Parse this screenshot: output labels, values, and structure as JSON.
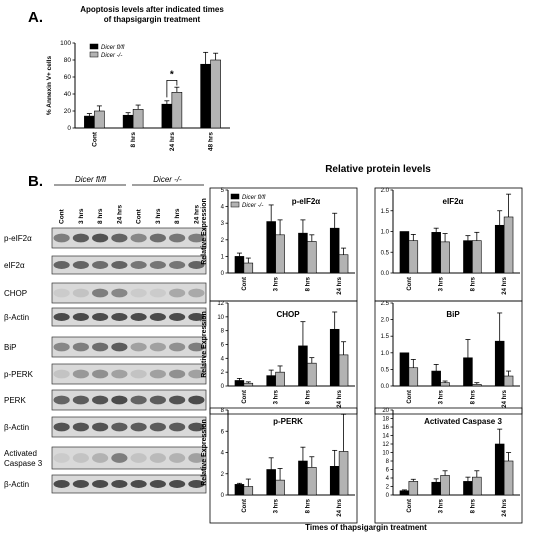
{
  "panel_a_label": "A.",
  "panel_b_label": "B.",
  "blot": {
    "groups": [
      "Dicer fl/fl",
      "Dicer -/-"
    ],
    "lanes": [
      "Cont",
      "3 hrs",
      "8 hrs",
      "24 hrs",
      "Cont",
      "3 hrs",
      "8 hrs",
      "24 hrs"
    ],
    "rows": [
      "p-eIF2α",
      "eIF2α",
      "CHOP",
      "β-Actin",
      "BiP",
      "p-PERK",
      "PERK",
      "β-Actin",
      "Activated Caspase 3",
      "β-Actin"
    ]
  },
  "relative_title": "Relative protein levels",
  "shared_xlabel": "Times of thapsigargin treatment",
  "colors": {
    "control": "#000000",
    "knockout": "#b3b3b3"
  },
  "chart_data": [
    {
      "id": "annexin",
      "type": "bar",
      "title": "Apoptosis levels after indicated times of thapsigargin treatment",
      "ylabel": "% Annexin V+ cells",
      "xlabel": "",
      "categories": [
        "Cont",
        "8 hrs",
        "24 hrs",
        "48 hrs"
      ],
      "ylim": [
        0,
        100
      ],
      "yticks": [
        0,
        20,
        40,
        60,
        80,
        100
      ],
      "legend": [
        "Dicer fl/fl",
        "Dicer -/-"
      ],
      "significance": {
        "category": "24 hrs",
        "label": "*"
      },
      "series": [
        {
          "name": "Dicer fl/fl",
          "values": [
            14,
            15,
            28,
            75
          ],
          "errors": [
            3,
            3,
            4,
            14
          ]
        },
        {
          "name": "Dicer -/-",
          "values": [
            20,
            22,
            42,
            80
          ],
          "errors": [
            6,
            5,
            6,
            8
          ]
        }
      ]
    },
    {
      "id": "peif2a",
      "type": "bar",
      "title": "p-eIF2α",
      "ylabel": "Relative Expression",
      "categories": [
        "Cont",
        "3 hrs",
        "8 hrs",
        "24 hrs"
      ],
      "ylim": [
        0,
        5
      ],
      "yticks": [
        0,
        1,
        2,
        3,
        4,
        5
      ],
      "legend": [
        "Dicer fl/fl",
        "Dicer -/-"
      ],
      "series": [
        {
          "name": "Dicer fl/fl",
          "values": [
            1.0,
            3.1,
            2.4,
            2.7
          ],
          "errors": [
            0.2,
            1.0,
            0.8,
            0.9
          ]
        },
        {
          "name": "Dicer -/-",
          "values": [
            0.6,
            2.3,
            1.9,
            1.1
          ],
          "errors": [
            0.3,
            0.9,
            0.4,
            0.4
          ]
        }
      ]
    },
    {
      "id": "eif2a",
      "type": "bar",
      "title": "eIF2α",
      "ylabel": "",
      "categories": [
        "Cont",
        "3 hrs",
        "8 hrs",
        "24 hrs"
      ],
      "ylim": [
        0,
        2
      ],
      "yticks": [
        0.0,
        0.5,
        1.0,
        1.5,
        2.0
      ],
      "series": [
        {
          "name": "Dicer fl/fl",
          "values": [
            1.0,
            0.98,
            0.78,
            1.15
          ],
          "errors": [
            0.0,
            0.1,
            0.12,
            0.35
          ]
        },
        {
          "name": "Dicer -/-",
          "values": [
            0.78,
            0.75,
            0.78,
            1.35
          ],
          "errors": [
            0.15,
            0.2,
            0.2,
            0.55
          ]
        }
      ]
    },
    {
      "id": "chop",
      "type": "bar",
      "title": "CHOP",
      "ylabel": "Relative Expression",
      "categories": [
        "Cont",
        "3 hrs",
        "8 hrs",
        "24 hrs"
      ],
      "ylim": [
        0,
        12
      ],
      "yticks": [
        0,
        2,
        4,
        6,
        8,
        10,
        12
      ],
      "series": [
        {
          "name": "Dicer fl/fl",
          "values": [
            0.8,
            1.5,
            5.8,
            8.2
          ],
          "errors": [
            0.3,
            0.8,
            3.5,
            2.5
          ]
        },
        {
          "name": "Dicer -/-",
          "values": [
            0.4,
            2.0,
            3.3,
            4.5
          ],
          "errors": [
            0.2,
            0.9,
            0.8,
            1.9
          ]
        }
      ]
    },
    {
      "id": "bip",
      "type": "bar",
      "title": "BiP",
      "ylabel": "",
      "categories": [
        "Cont",
        "3 hrs",
        "8 hrs",
        "24 hrs"
      ],
      "ylim": [
        0,
        2.5
      ],
      "yticks": [
        0.0,
        0.5,
        1.0,
        1.5,
        2.0,
        2.5
      ],
      "series": [
        {
          "name": "Dicer fl/fl",
          "values": [
            1.0,
            0.45,
            0.85,
            1.35
          ],
          "errors": [
            0.0,
            0.2,
            0.55,
            0.85
          ]
        },
        {
          "name": "Dicer -/-",
          "values": [
            0.55,
            0.1,
            0.05,
            0.3
          ],
          "errors": [
            0.25,
            0.05,
            0.05,
            0.15
          ]
        }
      ]
    },
    {
      "id": "pperk",
      "type": "bar",
      "title": "p-PERK",
      "ylabel": "Relative Expression",
      "categories": [
        "Cont",
        "3 hrs",
        "8 hrs",
        "24 hrs"
      ],
      "ylim": [
        0,
        8
      ],
      "yticks": [
        0,
        2,
        4,
        6,
        8
      ],
      "series": [
        {
          "name": "Dicer fl/fl",
          "values": [
            1.0,
            2.4,
            3.2,
            2.7
          ],
          "errors": [
            0.1,
            1.1,
            1.3,
            1.5
          ]
        },
        {
          "name": "Dicer -/-",
          "values": [
            0.8,
            1.4,
            2.6,
            4.1
          ],
          "errors": [
            0.7,
            1.1,
            1.0,
            3.5
          ]
        }
      ]
    },
    {
      "id": "casp3",
      "type": "bar",
      "title": "Activated Caspase 3",
      "ylabel": "",
      "categories": [
        "Cont",
        "3 hrs",
        "8 hrs",
        "24 hrs"
      ],
      "ylim": [
        0,
        20
      ],
      "yticks": [
        0,
        2,
        4,
        6,
        8,
        10,
        12,
        14,
        16,
        18,
        20
      ],
      "series": [
        {
          "name": "Dicer fl/fl",
          "values": [
            1.0,
            3.0,
            3.2,
            12.0
          ],
          "errors": [
            0.2,
            0.8,
            1.0,
            3.5
          ]
        },
        {
          "name": "Dicer -/-",
          "values": [
            3.2,
            4.6,
            4.2,
            8.0
          ],
          "errors": [
            0.5,
            1.1,
            1.5,
            2.0
          ]
        }
      ]
    }
  ]
}
